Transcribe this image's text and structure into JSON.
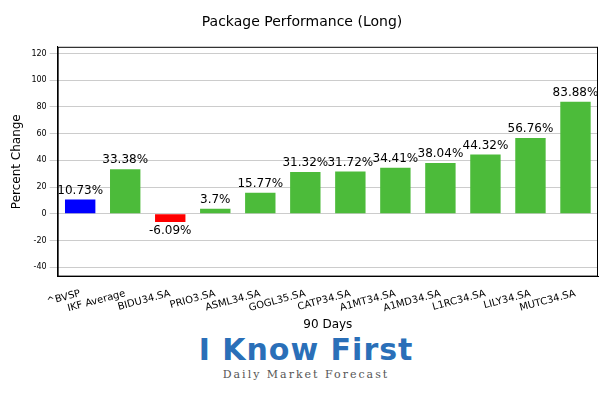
{
  "chart_data": {
    "type": "bar",
    "title": "Package Performance (Long)",
    "x_label": "90 Days",
    "y_label": "Percent Change",
    "categories": [
      "^BVSP",
      "IKF Average",
      "BIDU34.SA",
      "PRIO3.SA",
      "ASML34.SA",
      "GOGL35.SA",
      "CATP34.SA",
      "A1MT34.SA",
      "A1MD34.SA",
      "L1RC34.SA",
      "LILY34.SA",
      "MUTC34.SA"
    ],
    "values": [
      10.73,
      33.38,
      -6.09,
      3.7,
      15.77,
      31.32,
      31.72,
      34.41,
      38.04,
      44.32,
      56.76,
      83.88
    ],
    "value_labels": [
      "10.73%",
      "33.38%",
      "-6.09%",
      "3.7%",
      "15.77%",
      "31.32%",
      "31.72%",
      "34.41%",
      "38.04%",
      "44.32%",
      "56.76%",
      "83.88%"
    ],
    "colors": [
      "#0000ff",
      "#4cbb3a",
      "#ff0000",
      "#4cbb3a",
      "#4cbb3a",
      "#4cbb3a",
      "#4cbb3a",
      "#4cbb3a",
      "#4cbb3a",
      "#4cbb3a",
      "#4cbb3a",
      "#4cbb3a"
    ],
    "ylim": [
      -47,
      125
    ],
    "yticks": [
      -40,
      -20,
      0,
      20,
      40,
      60,
      80,
      100,
      120
    ],
    "grid": true,
    "data_labels": true,
    "annotations": [
      "I Know First",
      "Daily Market Forecast"
    ]
  }
}
